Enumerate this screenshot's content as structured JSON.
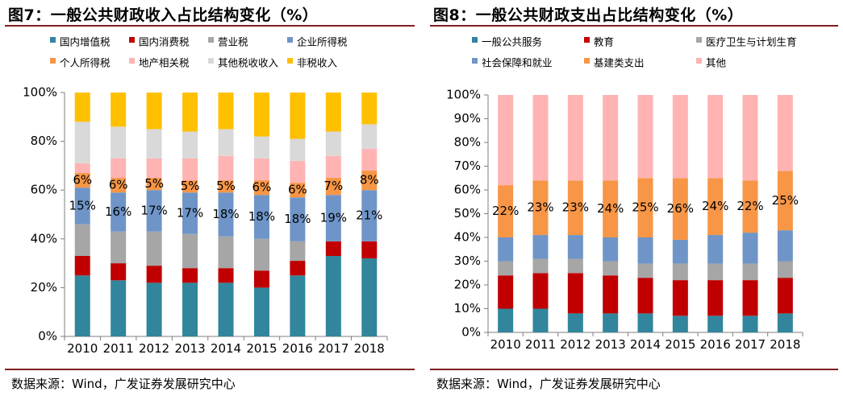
{
  "panels": [
    {
      "title": "图7：一般公共财政收入占比结构变化（%）",
      "source": "数据来源：Wind，广发证券发展研究中心"
    },
    {
      "title": "图8：一般公共财政支出占比结构变化（%）",
      "source": "数据来源：Wind，广发证券发展研究中心"
    }
  ],
  "chart_data": [
    {
      "type": "bar",
      "stacked": true,
      "percent_stacked": true,
      "title": "",
      "categories": [
        "2010",
        "2011",
        "2012",
        "2013",
        "2014",
        "2015",
        "2016",
        "2017",
        "2018"
      ],
      "ylim": [
        0,
        100
      ],
      "yticks": [
        "0%",
        "20%",
        "40%",
        "60%",
        "80%",
        "100%"
      ],
      "legend_position": "top",
      "series": [
        {
          "name": "国内增值税",
          "color": "#31859c",
          "values": [
            25,
            23,
            22,
            22,
            22,
            20,
            25,
            33,
            32
          ]
        },
        {
          "name": "国内消费税",
          "color": "#c00000",
          "values": [
            8,
            7,
            7,
            6,
            6,
            7,
            6,
            6,
            7
          ]
        },
        {
          "name": "营业税",
          "color": "#a6a6a6",
          "values": [
            13,
            13,
            14,
            14,
            13,
            13,
            8,
            0,
            0
          ]
        },
        {
          "name": "企业所得税",
          "color": "#6f95c8",
          "values": [
            15,
            16,
            17,
            17,
            18,
            18,
            18,
            19,
            21
          ]
        },
        {
          "name": "个人所得税",
          "color": "#f79646",
          "values": [
            6,
            6,
            5,
            5,
            5,
            6,
            6,
            7,
            8
          ]
        },
        {
          "name": "地产相关税",
          "color": "#ffb3b3",
          "values": [
            4,
            8,
            8,
            9,
            10,
            9,
            9,
            9,
            9
          ]
        },
        {
          "name": "其他税收收入",
          "color": "#d9d9d9",
          "values": [
            17,
            13,
            12,
            11,
            11,
            9,
            9,
            10,
            10
          ]
        },
        {
          "name": "非税收入",
          "color": "#ffc000",
          "values": [
            12,
            14,
            15,
            16,
            15,
            18,
            19,
            16,
            13
          ]
        }
      ],
      "labels": [
        {
          "series": "个人所得税",
          "values": [
            "6%",
            "6%",
            "5%",
            "5%",
            "5%",
            "6%",
            "6%",
            "7%",
            "8%"
          ]
        },
        {
          "series": "企业所得税",
          "values": [
            "15%",
            "16%",
            "17%",
            "17%",
            "18%",
            "18%",
            "18%",
            "19%",
            "21%"
          ]
        }
      ]
    },
    {
      "type": "bar",
      "stacked": true,
      "percent_stacked": true,
      "title": "",
      "categories": [
        "2010",
        "2011",
        "2012",
        "2013",
        "2014",
        "2015",
        "2016",
        "2017",
        "2018"
      ],
      "ylim": [
        0,
        100
      ],
      "yticks": [
        "0%",
        "10%",
        "20%",
        "30%",
        "40%",
        "50%",
        "60%",
        "70%",
        "80%",
        "90%",
        "100%"
      ],
      "legend_position": "top",
      "series": [
        {
          "name": "一般公共服务",
          "color": "#31859c",
          "values": [
            10,
            10,
            8,
            8,
            8,
            7,
            7,
            7,
            8
          ]
        },
        {
          "name": "教育",
          "color": "#c00000",
          "values": [
            14,
            15,
            17,
            16,
            15,
            15,
            15,
            15,
            15
          ]
        },
        {
          "name": "医疗卫生与计划生育",
          "color": "#a6a6a6",
          "values": [
            6,
            6,
            6,
            6,
            6,
            7,
            7,
            7,
            7
          ]
        },
        {
          "name": "社会保障和就业",
          "color": "#6f95c8",
          "values": [
            10,
            10,
            10,
            10,
            11,
            10,
            12,
            13,
            13
          ]
        },
        {
          "name": "基建类支出",
          "color": "#f79646",
          "values": [
            22,
            23,
            23,
            24,
            25,
            26,
            24,
            22,
            25
          ]
        },
        {
          "name": "其他",
          "color": "#ffb3b3",
          "values": [
            38,
            36,
            36,
            36,
            35,
            35,
            35,
            36,
            32
          ]
        }
      ],
      "labels": [
        {
          "series": "基建类支出",
          "values": [
            "22%",
            "23%",
            "23%",
            "24%",
            "25%",
            "26%",
            "24%",
            "22%",
            "25%"
          ]
        }
      ]
    }
  ]
}
